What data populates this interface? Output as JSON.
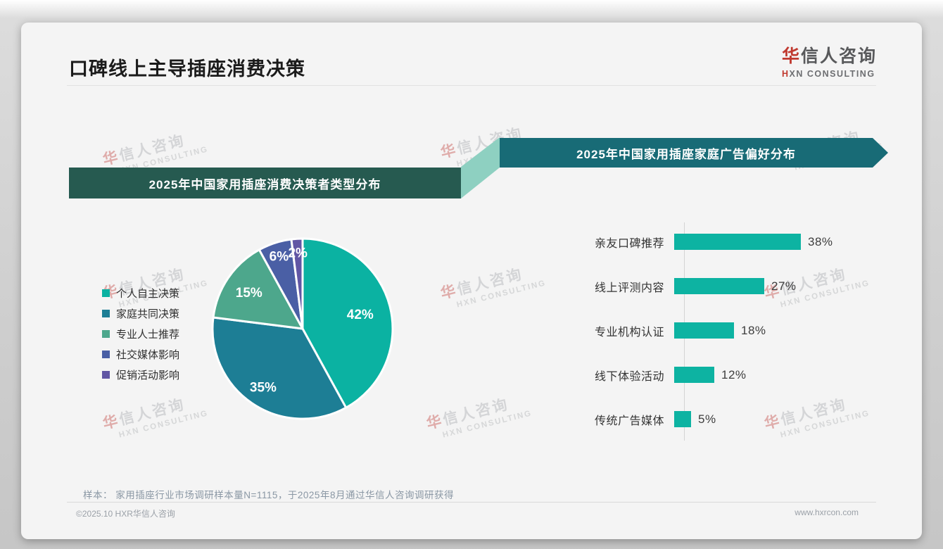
{
  "header": {
    "title": "口碑线上主导插座消费决策",
    "logo": {
      "name_accent": "华",
      "name_rest": "信人咨询",
      "tagline_accent": "H",
      "tagline_rest": "XN CONSULTING"
    }
  },
  "watermark": {
    "line1_accent": "华",
    "line1_rest": "信人咨询",
    "line2": "HXN CONSULTING"
  },
  "chart_data": [
    {
      "type": "pie",
      "title": "2025年中国家用插座消费决策者类型分布",
      "labels": [
        "个人自主决策",
        "家庭共同决策",
        "专业人士推荐",
        "社交媒体影响",
        "促销活动影响"
      ],
      "values": [
        42,
        35,
        15,
        6,
        2
      ],
      "unit": "%",
      "data_labels": [
        "42%",
        "35%",
        "15%",
        "6%",
        "2%"
      ],
      "colors": [
        "#0bb2a2",
        "#1d7e95",
        "#4da78c",
        "#4a5fa5",
        "#6156a4"
      ],
      "legend_position": "left",
      "start_angle_deg": 0,
      "direction": "clockwise"
    },
    {
      "type": "bar",
      "orientation": "horizontal",
      "title": "2025年中国家用插座家庭广告偏好分布",
      "categories": [
        "亲友口碑推荐",
        "线上评测内容",
        "专业机构认证",
        "线下体验活动",
        "传统广告媒体"
      ],
      "values": [
        38,
        27,
        18,
        12,
        5
      ],
      "unit": "%",
      "data_labels": [
        "38%",
        "27%",
        "18%",
        "12%",
        "5%"
      ],
      "xlim": [
        0,
        40
      ],
      "bar_color": "#0db3a2",
      "grid": false,
      "legend_position": "none"
    }
  ],
  "footnote": "样本： 家用插座行业市场调研样本量N=1115，于2025年8月通过华信人咨询调研获得",
  "footer": {
    "copyright": "©2025.10 HXR华信人咨询",
    "website": "www.hxrcon.com"
  },
  "colors": {
    "accent_red": "#c0392f",
    "banner_left_bg": "#265a50",
    "banner_right_bg": "#186b76",
    "banner_connector": "#8ed0c1",
    "card_bg": "#f4f4f4"
  }
}
